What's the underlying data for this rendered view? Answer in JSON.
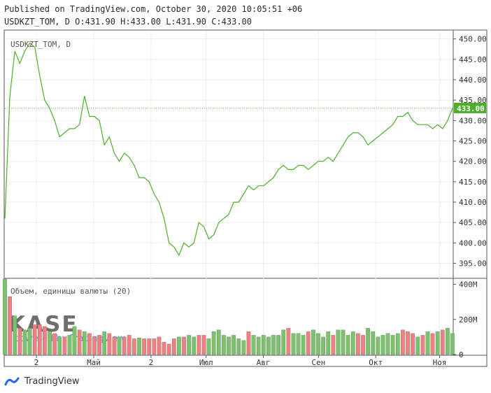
{
  "header": {
    "published": "Published on TradingView.com, October 30, 2020 10:05:51 +06",
    "ohlc": "USDKZT_TOM, D O:431.90 H:433.00 L:431.90 C:433.00"
  },
  "footer": {
    "brand": "TradingView"
  },
  "colors": {
    "price_line": "#4caf2a",
    "last_price_badge": "#4caf2a",
    "volume_up": "#7ac36a",
    "volume_down": "#f07f7f",
    "grid": "#eeeeee",
    "axis": "#555555"
  },
  "icons": [
    "tradingview-logo-icon",
    "kase-logo"
  ],
  "chart_data": [
    {
      "type": "line",
      "symbol_label": "USDKZT_TOM, D",
      "ylim": [
        391.5,
        452
      ],
      "y_ticks": [
        395,
        400,
        405,
        410,
        415,
        420,
        425,
        430,
        435,
        440,
        445,
        450
      ],
      "y_tick_labels": [
        "395.00",
        "400.00",
        "405.00",
        "410.00",
        "415.00",
        "420.00",
        "425.00",
        "430.00",
        "435.00",
        "440.00",
        "445.00",
        "450.00"
      ],
      "last_price": 433.0,
      "last_price_label": "433.00",
      "x_tick_labels": [
        "2",
        "Май",
        "2",
        "Июл",
        "Авг",
        "Сен",
        "Окт",
        "Ноя"
      ],
      "values": [
        406,
        436,
        447,
        444,
        447,
        449,
        448,
        441,
        435,
        433,
        430,
        426,
        427,
        428,
        428,
        429,
        436,
        431,
        431,
        430,
        424,
        426,
        422,
        420,
        422,
        421,
        419,
        416,
        416,
        415,
        412,
        410,
        406,
        400,
        399,
        397,
        400,
        399,
        400,
        405,
        404,
        401,
        402,
        405,
        406,
        407,
        410,
        410,
        412,
        414,
        413,
        414,
        414,
        415,
        416,
        418,
        419,
        418,
        418,
        419,
        419,
        418,
        419,
        420,
        420,
        421,
        420,
        422,
        424,
        426,
        427,
        427,
        426,
        424,
        425,
        426,
        427,
        428,
        429,
        431,
        431,
        432,
        430,
        429,
        429,
        429,
        428,
        429,
        428,
        430,
        433
      ],
      "grid": true
    },
    {
      "type": "bar",
      "title": "Объем, единицы валюты (20)",
      "y_tick_labels": [
        "0",
        "200M",
        "400M"
      ],
      "ylim": [
        0,
        430
      ],
      "values": [
        430,
        330,
        220,
        150,
        140,
        150,
        170,
        170,
        160,
        130,
        120,
        100,
        100,
        110,
        160,
        140,
        130,
        120,
        100,
        110,
        130,
        120,
        100,
        100,
        100,
        110,
        90,
        95,
        90,
        90,
        90,
        100,
        70,
        60,
        90,
        100,
        100,
        110,
        100,
        110,
        110,
        90,
        130,
        140,
        110,
        100,
        110,
        90,
        80,
        130,
        110,
        100,
        110,
        100,
        110,
        110,
        140,
        150,
        120,
        120,
        110,
        130,
        140,
        120,
        100,
        130,
        110,
        140,
        140,
        110,
        130,
        120,
        110,
        150,
        130,
        100,
        110,
        120,
        110,
        120,
        140,
        130,
        120,
        100,
        110,
        130,
        120,
        130,
        140,
        150,
        120
      ],
      "colors": [
        "up",
        "down",
        "up",
        "down",
        "up",
        "up",
        "down",
        "down",
        "down",
        "up",
        "down",
        "up",
        "down",
        "up",
        "up",
        "down",
        "up",
        "down",
        "down",
        "down",
        "up",
        "down",
        "down",
        "up",
        "down",
        "down",
        "down",
        "up",
        "down",
        "down",
        "down",
        "down",
        "down",
        "down",
        "down",
        "up",
        "down",
        "up",
        "up",
        "down",
        "down",
        "up",
        "up",
        "up",
        "up",
        "up",
        "up",
        "up",
        "up",
        "down",
        "up",
        "up",
        "up",
        "up",
        "up",
        "up",
        "up",
        "down",
        "up",
        "up",
        "up",
        "down",
        "up",
        "up",
        "up",
        "up",
        "down",
        "up",
        "up",
        "up",
        "up",
        "down",
        "down",
        "up",
        "up",
        "up",
        "up",
        "up",
        "up",
        "up",
        "down",
        "down",
        "down",
        "up",
        "down",
        "up",
        "down",
        "up",
        "down",
        "up",
        "up"
      ]
    }
  ]
}
